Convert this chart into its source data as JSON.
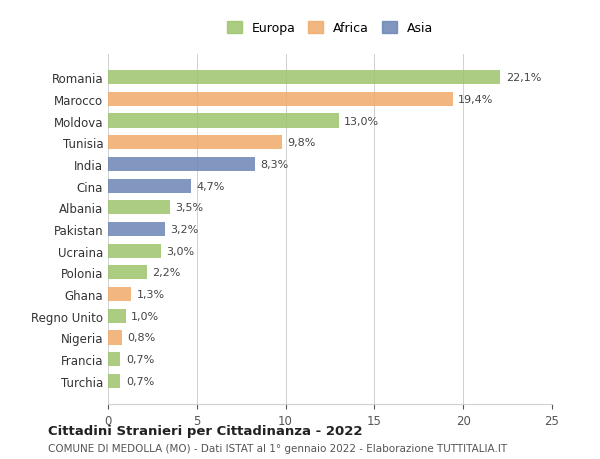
{
  "countries": [
    "Romania",
    "Marocco",
    "Moldova",
    "Tunisia",
    "India",
    "Cina",
    "Albania",
    "Pakistan",
    "Ucraina",
    "Polonia",
    "Ghana",
    "Regno Unito",
    "Nigeria",
    "Francia",
    "Turchia"
  ],
  "values": [
    22.1,
    19.4,
    13.0,
    9.8,
    8.3,
    4.7,
    3.5,
    3.2,
    3.0,
    2.2,
    1.3,
    1.0,
    0.8,
    0.7,
    0.7
  ],
  "labels": [
    "22,1%",
    "19,4%",
    "13,0%",
    "9,8%",
    "8,3%",
    "4,7%",
    "3,5%",
    "3,2%",
    "3,0%",
    "2,2%",
    "1,3%",
    "1,0%",
    "0,8%",
    "0,7%",
    "0,7%"
  ],
  "continents": [
    "Europa",
    "Africa",
    "Europa",
    "Africa",
    "Asia",
    "Asia",
    "Europa",
    "Asia",
    "Europa",
    "Europa",
    "Africa",
    "Europa",
    "Africa",
    "Europa",
    "Europa"
  ],
  "colors": {
    "Europa": "#9dc36b",
    "Africa": "#f0a96b",
    "Asia": "#6b85b5"
  },
  "legend_colors": {
    "Europa": "#9dc36b",
    "Africa": "#f0a96b",
    "Asia": "#6b85b5"
  },
  "xlim": [
    0,
    25
  ],
  "xticks": [
    0,
    5,
    10,
    15,
    20,
    25
  ],
  "title": "Cittadini Stranieri per Cittadinanza - 2022",
  "subtitle": "COMUNE DI MEDOLLA (MO) - Dati ISTAT al 1° gennaio 2022 - Elaborazione TUTTITALIA.IT",
  "background_color": "#ffffff",
  "grid_color": "#d0d0d0"
}
